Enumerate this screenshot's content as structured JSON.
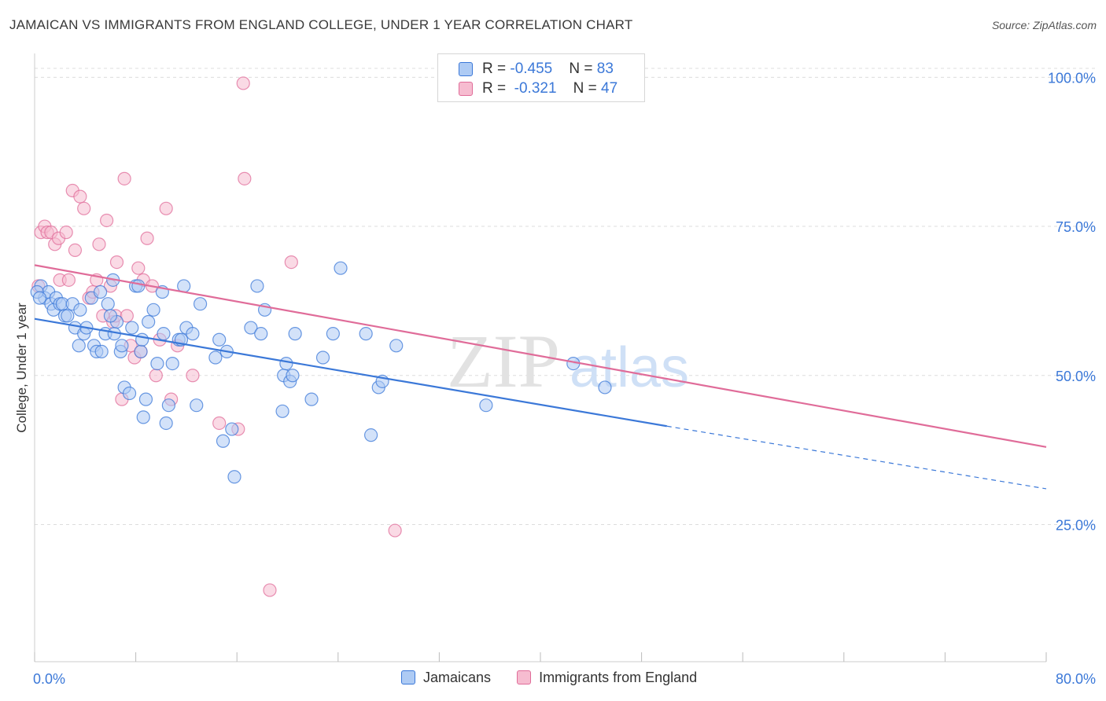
{
  "header": {
    "title": "JAMAICAN VS IMMIGRANTS FROM ENGLAND COLLEGE, UNDER 1 YEAR CORRELATION CHART",
    "source": "Source: ZipAtlas.com"
  },
  "watermark": {
    "zip": "ZIP",
    "atlas": "atlas"
  },
  "colors": {
    "blue": "#3b78d8",
    "blue_fill": "#aecbf4",
    "pink": "#e06c99",
    "pink_fill": "#f6bcd0",
    "grid": "#dddddd",
    "tick_label": "#3b78d8"
  },
  "legend": {
    "series": [
      {
        "r_label": "R = ",
        "r_value": "-0.455",
        "n_label": "N = ",
        "n_value": "83"
      },
      {
        "r_label": "R = ",
        "r_value": "-0.321",
        "n_label": "N = ",
        "n_value": "47"
      }
    ]
  },
  "chart_data": {
    "type": "scatter",
    "ylabel": "College, Under 1 year",
    "xlabel": "",
    "xlim": [
      0,
      80
    ],
    "ylim": [
      2,
      104
    ],
    "x_tick_labels": [
      "0.0%",
      "80.0%"
    ],
    "y_ticks": [
      25,
      50,
      75,
      100
    ],
    "y_tick_labels": [
      "25.0%",
      "50.0%",
      "75.0%",
      "100.0%"
    ],
    "grid": true,
    "legend_position": "top-center",
    "series": [
      {
        "name": "Jamaicans",
        "color": "#3b78d8",
        "trend": {
          "x0": 0,
          "y0": 59.5,
          "x1": 50,
          "y1": 41.5,
          "dash_to_x": 80,
          "dash_to_y": 31
        },
        "points": [
          [
            0.5,
            65
          ],
          [
            0.8,
            63
          ],
          [
            1.1,
            64
          ],
          [
            1.3,
            62
          ],
          [
            1.5,
            61
          ],
          [
            1.7,
            63
          ],
          [
            2.0,
            62
          ],
          [
            2.2,
            62
          ],
          [
            2.4,
            60
          ],
          [
            2.6,
            60
          ],
          [
            3.0,
            62
          ],
          [
            3.2,
            58
          ],
          [
            3.5,
            55
          ],
          [
            3.6,
            61
          ],
          [
            3.9,
            57
          ],
          [
            4.1,
            58
          ],
          [
            4.5,
            63
          ],
          [
            4.7,
            55
          ],
          [
            4.9,
            54
          ],
          [
            5.2,
            64
          ],
          [
            5.3,
            54
          ],
          [
            5.6,
            57
          ],
          [
            5.8,
            62
          ],
          [
            6.2,
            66
          ],
          [
            6.3,
            57
          ],
          [
            6.5,
            59
          ],
          [
            6.8,
            54
          ],
          [
            6.9,
            55
          ],
          [
            7.1,
            48
          ],
          [
            7.5,
            47
          ],
          [
            7.7,
            58
          ],
          [
            8.0,
            65
          ],
          [
            8.2,
            65
          ],
          [
            8.4,
            54
          ],
          [
            8.5,
            56
          ],
          [
            8.6,
            43
          ],
          [
            8.8,
            46
          ],
          [
            9.0,
            59
          ],
          [
            9.4,
            61
          ],
          [
            9.7,
            52
          ],
          [
            10.1,
            64
          ],
          [
            10.2,
            57
          ],
          [
            10.4,
            42
          ],
          [
            10.6,
            45
          ],
          [
            10.9,
            52
          ],
          [
            11.4,
            56
          ],
          [
            11.6,
            56
          ],
          [
            11.8,
            65
          ],
          [
            12.0,
            58
          ],
          [
            12.5,
            57
          ],
          [
            12.8,
            45
          ],
          [
            13.1,
            62
          ],
          [
            14.3,
            53
          ],
          [
            14.6,
            56
          ],
          [
            14.9,
            39
          ],
          [
            15.2,
            54
          ],
          [
            15.6,
            41
          ],
          [
            15.8,
            33
          ],
          [
            17.1,
            58
          ],
          [
            17.6,
            65
          ],
          [
            17.9,
            57
          ],
          [
            18.2,
            61
          ],
          [
            19.6,
            44
          ],
          [
            19.7,
            50
          ],
          [
            19.9,
            52
          ],
          [
            20.2,
            49
          ],
          [
            20.4,
            50
          ],
          [
            20.6,
            57
          ],
          [
            21.9,
            46
          ],
          [
            22.8,
            53
          ],
          [
            23.6,
            57
          ],
          [
            24.2,
            68
          ],
          [
            26.2,
            57
          ],
          [
            26.6,
            40
          ],
          [
            27.2,
            48
          ],
          [
            27.5,
            49
          ],
          [
            28.6,
            55
          ],
          [
            35.7,
            45
          ],
          [
            42.6,
            52
          ],
          [
            45.1,
            48
          ],
          [
            0.2,
            64
          ],
          [
            0.4,
            63
          ],
          [
            6.0,
            60
          ]
        ]
      },
      {
        "name": "Immigrants from England",
        "color": "#e06c99",
        "trend": {
          "x0": 0,
          "y0": 68.5,
          "x1": 80,
          "y1": 38
        },
        "points": [
          [
            0.3,
            65
          ],
          [
            0.5,
            74
          ],
          [
            0.8,
            75
          ],
          [
            1.0,
            74
          ],
          [
            1.3,
            74
          ],
          [
            1.6,
            72
          ],
          [
            1.9,
            73
          ],
          [
            2.0,
            66
          ],
          [
            2.5,
            74
          ],
          [
            2.7,
            66
          ],
          [
            3.2,
            71
          ],
          [
            3.0,
            81
          ],
          [
            3.6,
            80
          ],
          [
            3.9,
            78
          ],
          [
            4.3,
            63
          ],
          [
            4.6,
            64
          ],
          [
            4.9,
            66
          ],
          [
            5.1,
            72
          ],
          [
            5.4,
            60
          ],
          [
            5.7,
            76
          ],
          [
            6.0,
            65
          ],
          [
            6.2,
            59
          ],
          [
            6.4,
            60
          ],
          [
            6.5,
            69
          ],
          [
            6.9,
            46
          ],
          [
            7.1,
            83
          ],
          [
            7.3,
            60
          ],
          [
            7.6,
            55
          ],
          [
            7.9,
            53
          ],
          [
            8.2,
            68
          ],
          [
            8.4,
            54
          ],
          [
            8.6,
            66
          ],
          [
            8.9,
            73
          ],
          [
            9.3,
            65
          ],
          [
            9.6,
            50
          ],
          [
            9.9,
            56
          ],
          [
            10.4,
            78
          ],
          [
            10.8,
            46
          ],
          [
            11.3,
            55
          ],
          [
            12.5,
            50
          ],
          [
            14.6,
            42
          ],
          [
            16.1,
            41
          ],
          [
            16.6,
            83
          ],
          [
            16.5,
            99
          ],
          [
            18.6,
            14
          ],
          [
            20.3,
            69
          ],
          [
            28.5,
            24
          ]
        ]
      }
    ]
  },
  "bottom_legend": [
    {
      "label": "Jamaicans"
    },
    {
      "label": "Immigrants from England"
    }
  ]
}
